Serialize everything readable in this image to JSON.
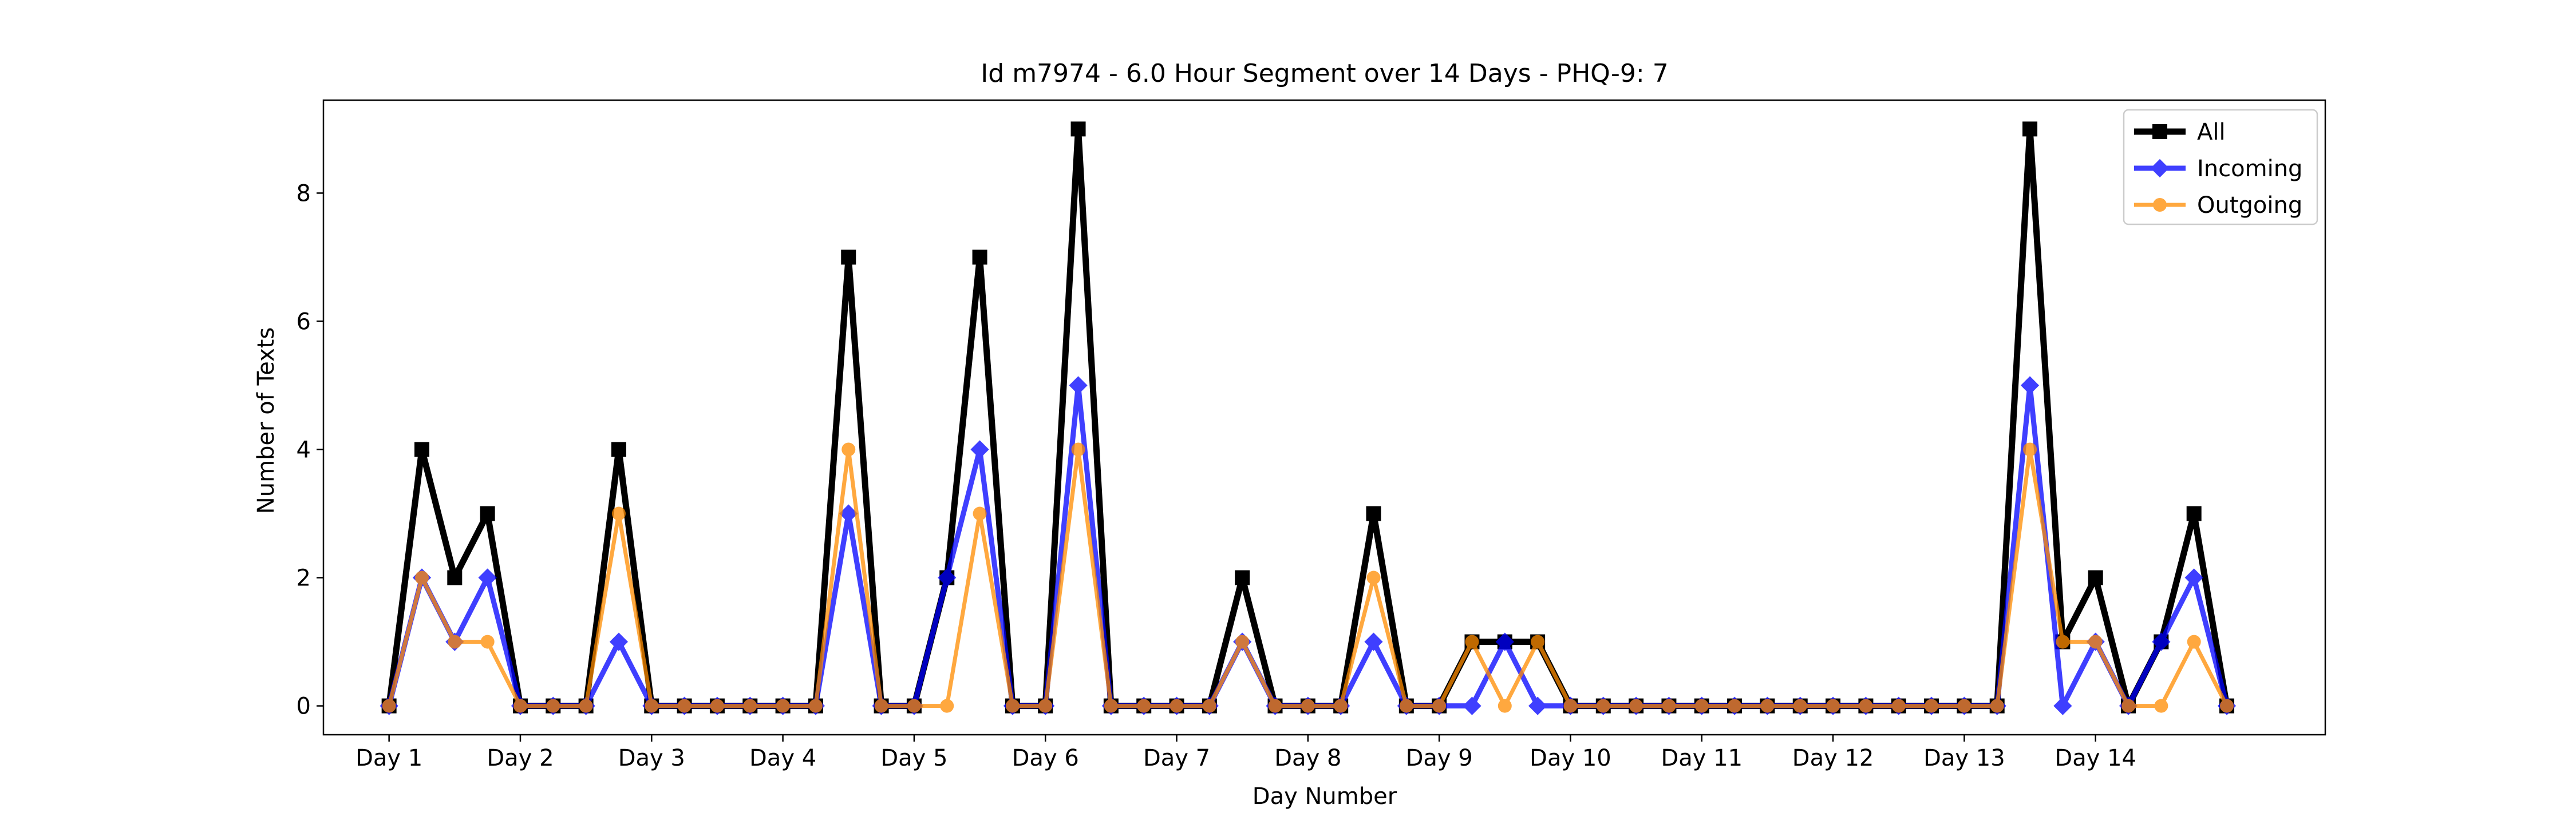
{
  "chart_data": {
    "type": "line",
    "title": "Id m7974 - 6.0 Hour Segment over 14 Days - PHQ-9: 7",
    "xlabel": "Day Number",
    "ylabel": "Number of Texts",
    "x_tick_labels": [
      "Day 1",
      "Day 2",
      "Day 3",
      "Day 4",
      "Day 5",
      "Day 6",
      "Day 7",
      "Day 8",
      "Day 9",
      "Day 10",
      "Day 11",
      "Day 12",
      "Day 13",
      "Day 14"
    ],
    "y_ticks": [
      0,
      2,
      4,
      6,
      8
    ],
    "x_range": [
      -0.5,
      14.75
    ],
    "y_range": [
      -0.45,
      9.45
    ],
    "grid": false,
    "legend_position": "top-right",
    "series": [
      {
        "name": "All",
        "color": "#000000",
        "marker": "square",
        "values": [
          0,
          4,
          2,
          3,
          0,
          0,
          0,
          4,
          0,
          0,
          0,
          0,
          0,
          0,
          7,
          0,
          0,
          2,
          7,
          0,
          0,
          9,
          0,
          0,
          0,
          0,
          2,
          0,
          0,
          0,
          3,
          0,
          0,
          1,
          1,
          1,
          0,
          0,
          0,
          0,
          0,
          0,
          0,
          0,
          0,
          0,
          0,
          0,
          0,
          0,
          9,
          1,
          2,
          0,
          1,
          3,
          0
        ]
      },
      {
        "name": "Incoming",
        "color": "#0000ff",
        "marker": "diamond",
        "values": [
          0,
          2,
          1,
          2,
          0,
          0,
          0,
          1,
          0,
          0,
          0,
          0,
          0,
          0,
          3,
          0,
          0,
          2,
          4,
          0,
          0,
          5,
          0,
          0,
          0,
          0,
          1,
          0,
          0,
          0,
          1,
          0,
          0,
          0,
          1,
          0,
          0,
          0,
          0,
          0,
          0,
          0,
          0,
          0,
          0,
          0,
          0,
          0,
          0,
          0,
          5,
          0,
          1,
          0,
          1,
          2,
          0
        ]
      },
      {
        "name": "Outgoing",
        "color": "#ff8c00",
        "marker": "circle",
        "values": [
          0,
          2,
          1,
          1,
          0,
          0,
          0,
          3,
          0,
          0,
          0,
          0,
          0,
          0,
          4,
          0,
          0,
          0,
          3,
          0,
          0,
          4,
          0,
          0,
          0,
          0,
          1,
          0,
          0,
          0,
          2,
          0,
          0,
          1,
          0,
          1,
          0,
          0,
          0,
          0,
          0,
          0,
          0,
          0,
          0,
          0,
          0,
          0,
          0,
          0,
          4,
          1,
          1,
          0,
          0,
          1,
          0
        ]
      }
    ]
  }
}
